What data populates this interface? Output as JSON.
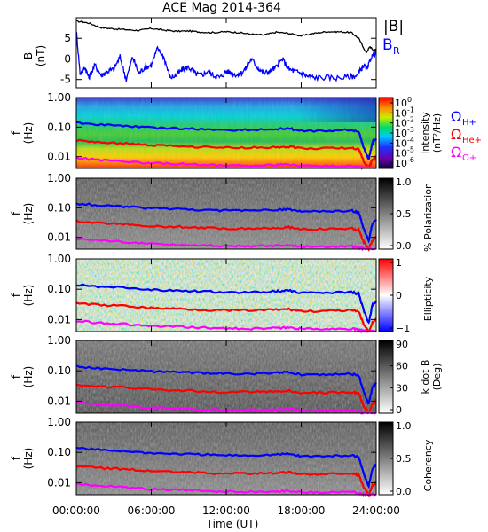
{
  "title": "ACE Mag 2014-364",
  "x_axis": {
    "label": "Time (UT)",
    "ticks": [
      "00:00:00",
      "06:00:00",
      "12:00:00",
      "18:00:00",
      "24:00:00"
    ],
    "tick_hours": [
      0,
      6,
      12,
      18,
      24
    ]
  },
  "panels": {
    "field": {
      "ylabel_top": "B",
      "ylabel_unit": "(nT)",
      "yticks": [
        "5",
        "0",
        "-5"
      ],
      "legend": {
        "b_total": "|B|",
        "b_r_main": "B",
        "b_r_sub": "R"
      },
      "colors": {
        "b_total": "#000000",
        "b_r": "#0000ff"
      }
    },
    "spectra_common": {
      "ylabel_top": "f",
      "ylabel_unit": "(Hz)",
      "yticks": [
        "1.00",
        "0.10",
        "0.01"
      ],
      "legend": [
        {
          "main": "Ω",
          "sub": "H+",
          "color": "#0000ff"
        },
        {
          "main": "Ω",
          "sub": "He+",
          "color": "#ff0000"
        },
        {
          "main": "Ω",
          "sub": "O+",
          "color": "#ff00ff"
        }
      ]
    },
    "intensity": {
      "cbar_label_1": "Intensity",
      "cbar_label_2": "(nT²/Hz)",
      "cbar_ticks_base": [
        "10",
        "10",
        "10",
        "10",
        "10",
        "10",
        "10"
      ],
      "cbar_ticks_exp": [
        "0",
        "-1",
        "-2",
        "-3",
        "-4",
        "-5",
        "-6"
      ]
    },
    "polarization": {
      "cbar_label": "% Polarization",
      "cbar_ticks": [
        "1.0",
        "0.5",
        "0.0"
      ]
    },
    "ellipticity": {
      "cbar_label": "Ellipticity",
      "cbar_ticks": [
        "1",
        "0",
        "−1"
      ]
    },
    "kdotb": {
      "cbar_label_1": "k dot B",
      "cbar_label_2": "(Deg)",
      "cbar_ticks": [
        "90",
        "60",
        "30",
        "0"
      ]
    },
    "coherency": {
      "cbar_label": "Coherency",
      "cbar_ticks": [
        "1.0",
        "0.5",
        "0.0"
      ]
    }
  },
  "chart_data": [
    {
      "type": "line",
      "title": "ACE Mag 2014-364",
      "xlabel": "Time (UT)",
      "ylabel": "B (nT)",
      "xlim": [
        0,
        24
      ],
      "ylim": [
        -7,
        10
      ],
      "series": [
        {
          "name": "|B|",
          "color": "#000000",
          "points": [
            [
              0,
              9.2
            ],
            [
              1,
              8.7
            ],
            [
              2,
              7.6
            ],
            [
              3,
              7.3
            ],
            [
              4,
              7.1
            ],
            [
              5,
              6.9
            ],
            [
              6,
              7.4
            ],
            [
              7,
              7.0
            ],
            [
              8,
              6.7
            ],
            [
              9,
              6.8
            ],
            [
              10,
              6.5
            ],
            [
              11,
              6.4
            ],
            [
              12,
              6.6
            ],
            [
              13,
              6.4
            ],
            [
              14,
              6.0
            ],
            [
              15,
              5.8
            ],
            [
              16,
              6.5
            ],
            [
              17,
              6.2
            ],
            [
              18,
              5.6
            ],
            [
              19,
              6.2
            ],
            [
              20,
              6.6
            ],
            [
              21,
              6.6
            ],
            [
              22,
              6.4
            ],
            [
              22.6,
              5.0
            ],
            [
              23.2,
              1.5
            ],
            [
              23.5,
              3.0
            ],
            [
              23.8,
              2.0
            ],
            [
              24,
              2.5
            ]
          ]
        },
        {
          "name": "B R",
          "color": "#0000ff",
          "points": [
            [
              0,
              7.0
            ],
            [
              0.3,
              -3.5
            ],
            [
              0.7,
              -2.0
            ],
            [
              1,
              -4.5
            ],
            [
              1.5,
              -1.5
            ],
            [
              2,
              -4.0
            ],
            [
              2.5,
              -3.0
            ],
            [
              3,
              -2.5
            ],
            [
              3.5,
              0.5
            ],
            [
              4,
              -5.0
            ],
            [
              4.5,
              0.5
            ],
            [
              5,
              -3.5
            ],
            [
              5.5,
              -2.0
            ],
            [
              6,
              -1.5
            ],
            [
              6.5,
              2.5
            ],
            [
              7,
              0.5
            ],
            [
              7.5,
              -4.5
            ],
            [
              8,
              -4.0
            ],
            [
              8.5,
              -2.5
            ],
            [
              9,
              -2.0
            ],
            [
              9.5,
              -3.5
            ],
            [
              10,
              -4.0
            ],
            [
              10.5,
              -3.0
            ],
            [
              11,
              -4.0
            ],
            [
              11.5,
              -4.5
            ],
            [
              12,
              -3.0
            ],
            [
              12.5,
              -3.5
            ],
            [
              13,
              -4.0
            ],
            [
              13.5,
              -2.5
            ],
            [
              14,
              0.0
            ],
            [
              14.5,
              -2.0
            ],
            [
              15,
              -3.5
            ],
            [
              15.5,
              -3.0
            ],
            [
              16,
              -2.0
            ],
            [
              16.5,
              0.0
            ],
            [
              17,
              -2.5
            ],
            [
              17.5,
              -3.0
            ],
            [
              18,
              -3.5
            ],
            [
              18.5,
              -4.2
            ],
            [
              19,
              -4.5
            ],
            [
              20,
              -4.5
            ],
            [
              21,
              -4.6
            ],
            [
              22,
              -4.3
            ],
            [
              22.5,
              -4.0
            ],
            [
              23,
              -1.5
            ],
            [
              23.3,
              -2.5
            ],
            [
              23.6,
              0.5
            ],
            [
              24,
              1.5
            ]
          ]
        }
      ]
    },
    {
      "type": "heatmap",
      "ylabel": "f (Hz)",
      "yscale": "log",
      "ylim": [
        0.004,
        1.0
      ],
      "xlim": [
        0,
        24
      ],
      "overlay_series": [
        {
          "name": "Ω H+",
          "color": "#0000ff",
          "points": [
            [
              0,
              0.14
            ],
            [
              2,
              0.12
            ],
            [
              4,
              0.11
            ],
            [
              6,
              0.095
            ],
            [
              8,
              0.09
            ],
            [
              10,
              0.085
            ],
            [
              12,
              0.08
            ],
            [
              14,
              0.08
            ],
            [
              16,
              0.085
            ],
            [
              17,
              0.09
            ],
            [
              18,
              0.075
            ],
            [
              20,
              0.075
            ],
            [
              22,
              0.08
            ],
            [
              22.6,
              0.07
            ],
            [
              23,
              0.02
            ],
            [
              23.4,
              0.008
            ],
            [
              23.7,
              0.03
            ],
            [
              24,
              0.04
            ]
          ]
        },
        {
          "name": "Ω He+",
          "color": "#ff0000",
          "points": [
            [
              0,
              0.035
            ],
            [
              2,
              0.03
            ],
            [
              4,
              0.028
            ],
            [
              6,
              0.024
            ],
            [
              8,
              0.023
            ],
            [
              10,
              0.021
            ],
            [
              12,
              0.02
            ],
            [
              14,
              0.02
            ],
            [
              16,
              0.021
            ],
            [
              17,
              0.022
            ],
            [
              18,
              0.019
            ],
            [
              20,
              0.019
            ],
            [
              22,
              0.02
            ],
            [
              22.6,
              0.018
            ],
            [
              23,
              0.007
            ],
            [
              23.4,
              0.004
            ],
            [
              23.7,
              0.008
            ],
            [
              24,
              0.01
            ]
          ]
        },
        {
          "name": "Ω O+",
          "color": "#ff00ff",
          "points": [
            [
              0,
              0.009
            ],
            [
              2,
              0.0078
            ],
            [
              4,
              0.007
            ],
            [
              6,
              0.006
            ],
            [
              8,
              0.0058
            ],
            [
              10,
              0.0054
            ],
            [
              12,
              0.0051
            ],
            [
              14,
              0.005
            ],
            [
              16,
              0.0052
            ],
            [
              17,
              0.0054
            ],
            [
              18,
              0.0049
            ],
            [
              20,
              0.0049
            ],
            [
              22,
              0.005
            ],
            [
              22.6,
              0.0045
            ],
            [
              23,
              0.0042
            ],
            [
              24,
              0.0042
            ]
          ]
        }
      ]
    }
  ]
}
